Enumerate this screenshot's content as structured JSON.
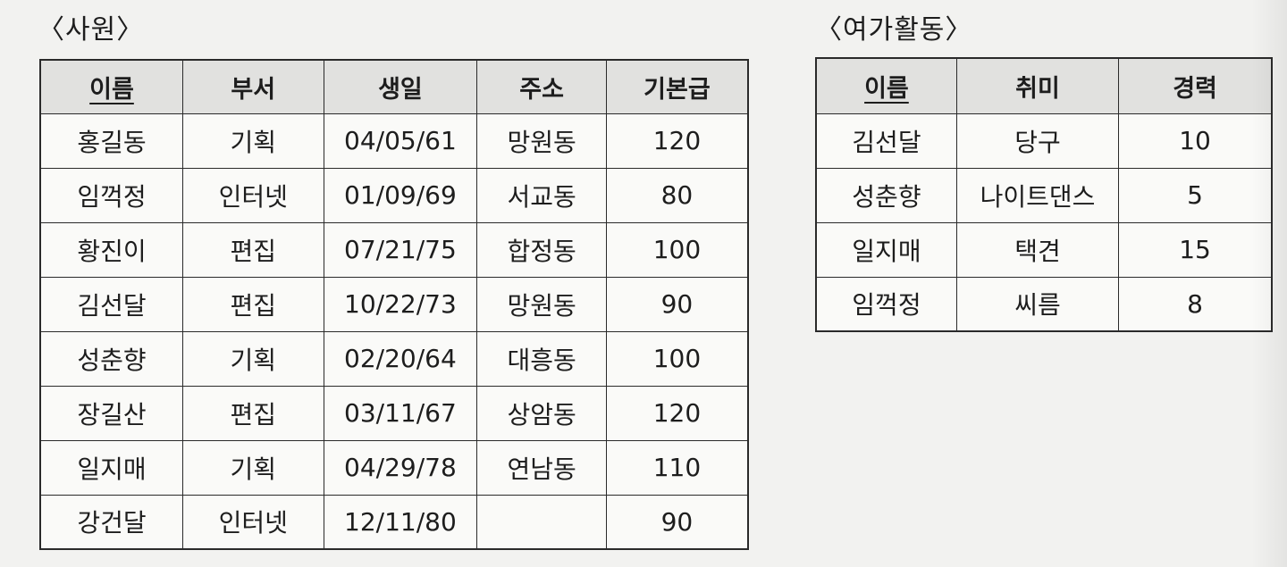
{
  "employee": {
    "title": "〈사원〉",
    "headers": [
      "이름",
      "부서",
      "생일",
      "주소",
      "기본급"
    ],
    "rows": [
      [
        "홍길동",
        "기획",
        "04/05/61",
        "망원동",
        "120"
      ],
      [
        "임꺽정",
        "인터넷",
        "01/09/69",
        "서교동",
        "80"
      ],
      [
        "황진이",
        "편집",
        "07/21/75",
        "합정동",
        "100"
      ],
      [
        "김선달",
        "편집",
        "10/22/73",
        "망원동",
        "90"
      ],
      [
        "성춘향",
        "기획",
        "02/20/64",
        "대흥동",
        "100"
      ],
      [
        "장길산",
        "편집",
        "03/11/67",
        "상암동",
        "120"
      ],
      [
        "일지매",
        "기획",
        "04/29/78",
        "연남동",
        "110"
      ],
      [
        "강건달",
        "인터넷",
        "12/11/80",
        "",
        "90"
      ]
    ]
  },
  "hobby": {
    "title": "〈여가활동〉",
    "headers": [
      "이름",
      "취미",
      "경력"
    ],
    "rows": [
      [
        "김선달",
        "당구",
        "10"
      ],
      [
        "성춘향",
        "나이트댄스",
        "5"
      ],
      [
        "일지매",
        "택견",
        "15"
      ],
      [
        "임꺽정",
        "씨름",
        "8"
      ]
    ]
  }
}
